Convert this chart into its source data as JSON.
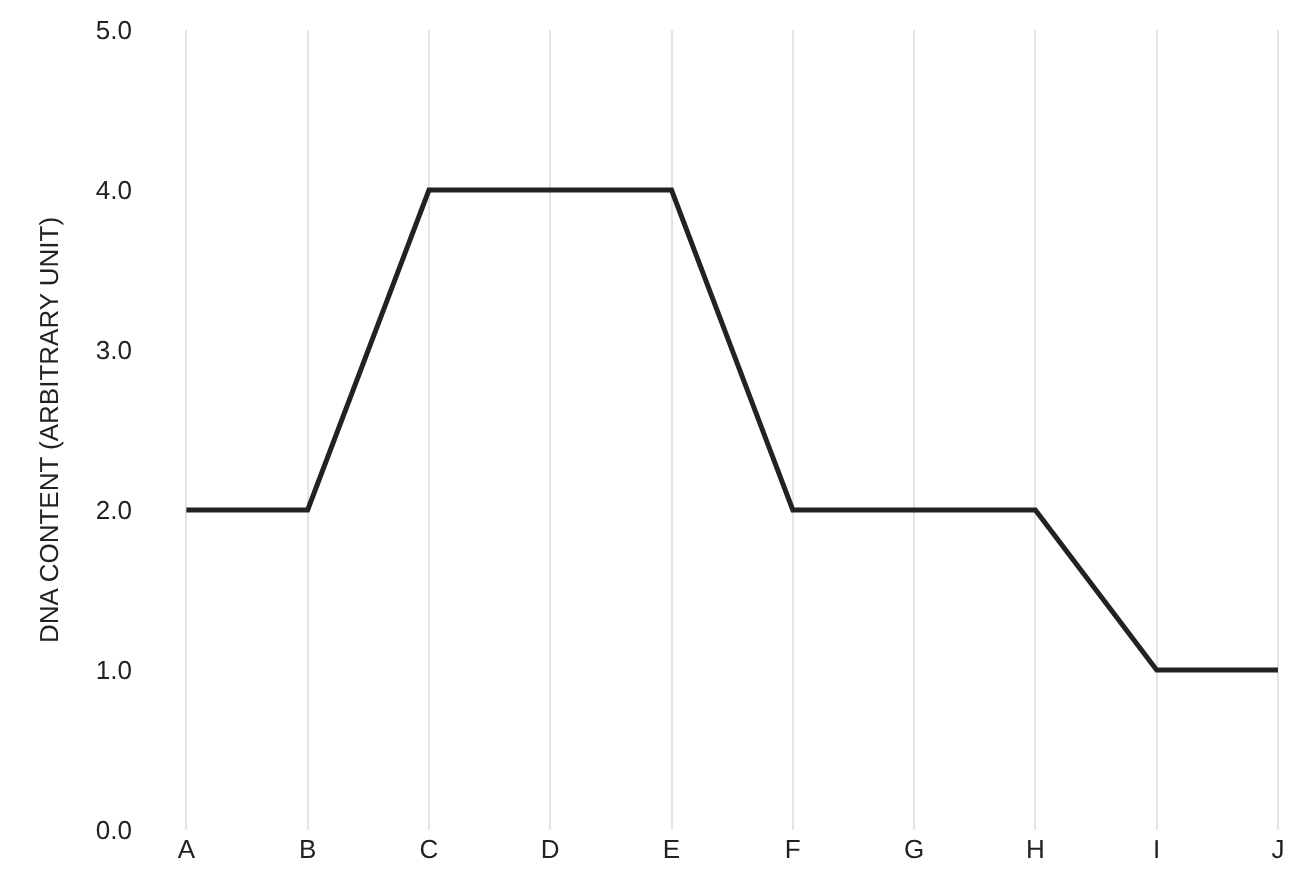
{
  "chart_data": {
    "type": "line",
    "ylabel": "DNA CONTENT (ARBITRARY UNIT)",
    "categories": [
      "A",
      "B",
      "C",
      "D",
      "E",
      "F",
      "G",
      "H",
      "I",
      "J"
    ],
    "series": [
      {
        "color": "#222222",
        "values": [
          2,
          2,
          4,
          4,
          4,
          2,
          2,
          2,
          1,
          1
        ]
      }
    ],
    "ylim": [
      0,
      5
    ],
    "yticks": [
      {
        "value": 0,
        "label": "0.0"
      },
      {
        "value": 1,
        "label": "1.0"
      },
      {
        "value": 2,
        "label": "2.0"
      },
      {
        "value": 3,
        "label": "3.0"
      },
      {
        "value": 4,
        "label": "4.0"
      },
      {
        "value": 5,
        "label": "5.0"
      }
    ],
    "grid": "x",
    "marker": "none",
    "line_style": "solid"
  }
}
